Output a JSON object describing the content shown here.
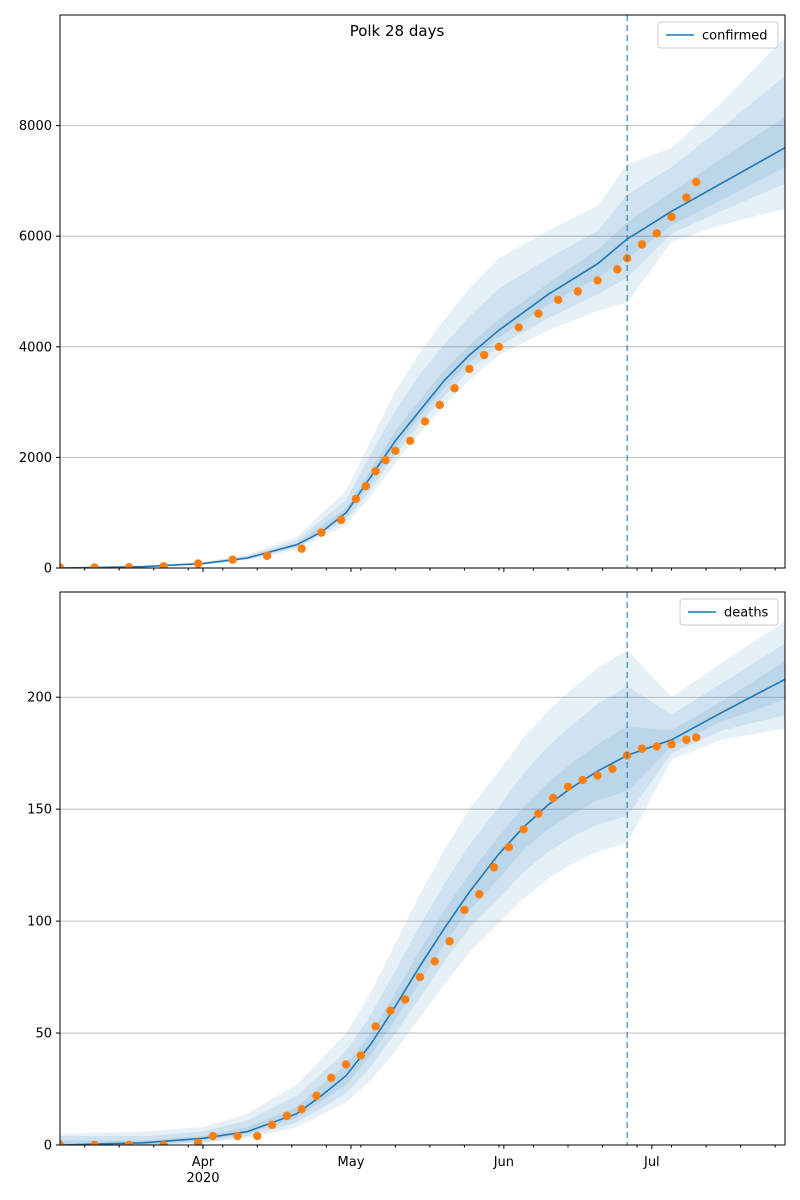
{
  "title": "Polk 28 days",
  "x_tick_labels": [
    "Apr",
    "May",
    "Jun",
    "Jul"
  ],
  "x_year_label": "2020",
  "forecast_start": "2020-06-26",
  "colors": {
    "model": "#1f77b4",
    "observed": "#ff7f0e",
    "band": "#1f77b4",
    "grid": "#b0b0b0"
  },
  "chart_data": [
    {
      "type": "line",
      "legend": "confirmed",
      "legend_placement": "top-right",
      "title": "Polk 28 days",
      "xlim": [
        "2020-03-03",
        "2020-07-28"
      ],
      "ylim": [
        0,
        10000
      ],
      "yticks": [
        0,
        2000,
        4000,
        6000,
        8000
      ],
      "grid": "horizontal",
      "model": {
        "x": [
          "2020-03-03",
          "2020-03-20",
          "2020-04-01",
          "2020-04-10",
          "2020-04-20",
          "2020-04-25",
          "2020-04-30",
          "2020-05-05",
          "2020-05-10",
          "2020-05-15",
          "2020-05-20",
          "2020-05-25",
          "2020-05-31",
          "2020-06-10",
          "2020-06-20",
          "2020-06-26",
          "2020-07-05",
          "2020-07-15",
          "2020-07-28"
        ],
        "y": [
          0,
          25,
          80,
          180,
          420,
          650,
          1000,
          1650,
          2300,
          2850,
          3400,
          3850,
          4300,
          4950,
          5500,
          5950,
          6450,
          6950,
          7600
        ]
      },
      "bands": [
        {
          "x": [
            "2020-03-03",
            "2020-03-20",
            "2020-04-01",
            "2020-04-10",
            "2020-04-20",
            "2020-04-30",
            "2020-05-05",
            "2020-05-10",
            "2020-05-15",
            "2020-05-20",
            "2020-05-25",
            "2020-05-31",
            "2020-06-10",
            "2020-06-20",
            "2020-06-26",
            "2020-07-05",
            "2020-07-15",
            "2020-07-28"
          ],
          "lower": [
            0,
            15,
            60,
            140,
            330,
            780,
            1300,
            1900,
            2450,
            2950,
            3400,
            3850,
            4300,
            4650,
            4800,
            5900,
            6200,
            6500
          ],
          "upper": [
            10,
            40,
            110,
            250,
            560,
            1400,
            2300,
            3200,
            3900,
            4500,
            5050,
            5600,
            6100,
            6550,
            7300,
            7600,
            8400,
            9600
          ]
        },
        {
          "x": [
            "2020-03-03",
            "2020-03-20",
            "2020-04-01",
            "2020-04-10",
            "2020-04-20",
            "2020-04-30",
            "2020-05-05",
            "2020-05-10",
            "2020-05-15",
            "2020-05-20",
            "2020-05-25",
            "2020-05-31",
            "2020-06-10",
            "2020-06-20",
            "2020-06-26",
            "2020-07-05",
            "2020-07-15",
            "2020-07-28"
          ],
          "lower": [
            0,
            18,
            68,
            155,
            365,
            860,
            1420,
            2050,
            2620,
            3120,
            3580,
            4020,
            4520,
            4950,
            5250,
            6050,
            6450,
            6950
          ],
          "upper": [
            8,
            34,
            98,
            220,
            500,
            1230,
            2050,
            2850,
            3500,
            4050,
            4550,
            5050,
            5600,
            6100,
            6750,
            7250,
            7950,
            8900
          ]
        },
        {
          "x": [
            "2020-03-03",
            "2020-03-20",
            "2020-04-01",
            "2020-04-10",
            "2020-04-20",
            "2020-04-30",
            "2020-05-05",
            "2020-05-10",
            "2020-05-15",
            "2020-05-20",
            "2020-05-25",
            "2020-05-31",
            "2020-06-10",
            "2020-06-20",
            "2020-06-26",
            "2020-07-05",
            "2020-07-15",
            "2020-07-28"
          ],
          "lower": [
            0,
            21,
            74,
            168,
            395,
            930,
            1540,
            2170,
            2740,
            3260,
            3720,
            4170,
            4760,
            5250,
            5600,
            6200,
            6650,
            7250
          ],
          "upper": [
            5,
            29,
            88,
            195,
            450,
            1080,
            1780,
            2480,
            3040,
            3580,
            4030,
            4500,
            5150,
            5750,
            6250,
            6800,
            7400,
            8150
          ]
        }
      ],
      "observed": {
        "x": [
          "2020-03-03",
          "2020-03-10",
          "2020-03-17",
          "2020-03-24",
          "2020-03-31",
          "2020-04-07",
          "2020-04-14",
          "2020-04-21",
          "2020-04-25",
          "2020-04-29",
          "2020-05-02",
          "2020-05-04",
          "2020-05-06",
          "2020-05-08",
          "2020-05-10",
          "2020-05-13",
          "2020-05-16",
          "2020-05-19",
          "2020-05-22",
          "2020-05-25",
          "2020-05-28",
          "2020-05-31",
          "2020-06-04",
          "2020-06-08",
          "2020-06-12",
          "2020-06-16",
          "2020-06-20",
          "2020-06-24",
          "2020-06-26",
          "2020-06-29",
          "2020-07-02",
          "2020-07-05",
          "2020-07-08",
          "2020-07-10"
        ],
        "y": [
          10,
          10,
          15,
          30,
          80,
          150,
          220,
          350,
          640,
          870,
          1250,
          1480,
          1750,
          1950,
          2120,
          2300,
          2650,
          2950,
          3250,
          3600,
          3850,
          4000,
          4350,
          4600,
          4850,
          5000,
          5200,
          5400,
          5600,
          5850,
          6050,
          6350,
          6700,
          6980
        ]
      }
    },
    {
      "type": "line",
      "legend": "deaths",
      "legend_placement": "top-right",
      "xlim": [
        "2020-03-03",
        "2020-07-28"
      ],
      "ylim": [
        0,
        247
      ],
      "yticks": [
        0,
        50,
        100,
        150,
        200
      ],
      "grid": "horizontal",
      "model": {
        "x": [
          "2020-03-03",
          "2020-03-20",
          "2020-04-01",
          "2020-04-10",
          "2020-04-20",
          "2020-04-25",
          "2020-04-30",
          "2020-05-05",
          "2020-05-10",
          "2020-05-15",
          "2020-05-20",
          "2020-05-25",
          "2020-05-31",
          "2020-06-05",
          "2020-06-10",
          "2020-06-15",
          "2020-06-20",
          "2020-06-26",
          "2020-07-05",
          "2020-07-15",
          "2020-07-28"
        ],
        "y": [
          0,
          1,
          3,
          6,
          14,
          22,
          31,
          45,
          62,
          80,
          97,
          113,
          130,
          142,
          152,
          160,
          167,
          174,
          181,
          193,
          208
        ]
      },
      "bands": [
        {
          "x": [
            "2020-03-03",
            "2020-03-20",
            "2020-04-01",
            "2020-04-10",
            "2020-04-20",
            "2020-04-30",
            "2020-05-05",
            "2020-05-10",
            "2020-05-15",
            "2020-05-20",
            "2020-05-25",
            "2020-05-31",
            "2020-06-05",
            "2020-06-10",
            "2020-06-15",
            "2020-06-20",
            "2020-06-26",
            "2020-07-05",
            "2020-07-15",
            "2020-07-28"
          ],
          "lower": [
            0,
            0,
            1,
            3,
            8,
            19,
            29,
            42,
            57,
            72,
            86,
            99,
            110,
            119,
            126,
            131,
            135,
            172,
            181,
            186
          ],
          "upper": [
            5,
            6,
            8,
            14,
            27,
            50,
            68,
            90,
            112,
            132,
            150,
            167,
            182,
            194,
            204,
            213,
            221,
            200,
            215,
            234
          ]
        },
        {
          "x": [
            "2020-03-03",
            "2020-03-20",
            "2020-04-01",
            "2020-04-10",
            "2020-04-20",
            "2020-04-30",
            "2020-05-05",
            "2020-05-10",
            "2020-05-15",
            "2020-05-20",
            "2020-05-25",
            "2020-05-31",
            "2020-06-05",
            "2020-06-10",
            "2020-06-15",
            "2020-06-20",
            "2020-06-26",
            "2020-07-05",
            "2020-07-15",
            "2020-07-28"
          ],
          "lower": [
            0,
            0,
            1,
            4,
            10,
            23,
            35,
            50,
            66,
            82,
            97,
            110,
            122,
            131,
            138,
            143,
            147,
            175,
            185,
            192
          ],
          "upper": [
            4,
            4,
            6,
            11,
            22,
            42,
            58,
            78,
            98,
            117,
            134,
            151,
            166,
            178,
            188,
            197,
            205,
            192,
            206,
            224
          ]
        },
        {
          "x": [
            "2020-03-03",
            "2020-03-20",
            "2020-04-01",
            "2020-04-10",
            "2020-04-20",
            "2020-04-30",
            "2020-05-05",
            "2020-05-10",
            "2020-05-15",
            "2020-05-20",
            "2020-05-25",
            "2020-05-31",
            "2020-06-05",
            "2020-06-10",
            "2020-06-15",
            "2020-06-20",
            "2020-06-26",
            "2020-07-05",
            "2020-07-15",
            "2020-07-28"
          ],
          "lower": [
            0,
            0,
            2,
            5,
            12,
            27,
            40,
            56,
            73,
            90,
            105,
            119,
            132,
            141,
            148,
            154,
            158,
            178,
            189,
            199
          ],
          "upper": [
            2,
            2,
            4,
            8,
            17,
            36,
            50,
            68,
            87,
            105,
            121,
            138,
            151,
            162,
            171,
            179,
            187,
            185,
            198,
            216
          ]
        }
      ],
      "observed": {
        "x": [
          "2020-03-03",
          "2020-03-10",
          "2020-03-17",
          "2020-03-24",
          "2020-03-31",
          "2020-04-03",
          "2020-04-08",
          "2020-04-12",
          "2020-04-15",
          "2020-04-18",
          "2020-04-21",
          "2020-04-24",
          "2020-04-27",
          "2020-04-30",
          "2020-05-03",
          "2020-05-06",
          "2020-05-09",
          "2020-05-12",
          "2020-05-15",
          "2020-05-18",
          "2020-05-21",
          "2020-05-24",
          "2020-05-27",
          "2020-05-30",
          "2020-06-02",
          "2020-06-05",
          "2020-06-08",
          "2020-06-11",
          "2020-06-14",
          "2020-06-17",
          "2020-06-20",
          "2020-06-23",
          "2020-06-26",
          "2020-06-29",
          "2020-07-02",
          "2020-07-05",
          "2020-07-08",
          "2020-07-10"
        ],
        "y": [
          0,
          0,
          0,
          0,
          1,
          4,
          4,
          4,
          9,
          13,
          16,
          22,
          30,
          36,
          40,
          53,
          60,
          65,
          75,
          82,
          91,
          105,
          112,
          124,
          133,
          141,
          148,
          155,
          160,
          163,
          165,
          168,
          174,
          177,
          178,
          179,
          181,
          182
        ]
      }
    }
  ]
}
